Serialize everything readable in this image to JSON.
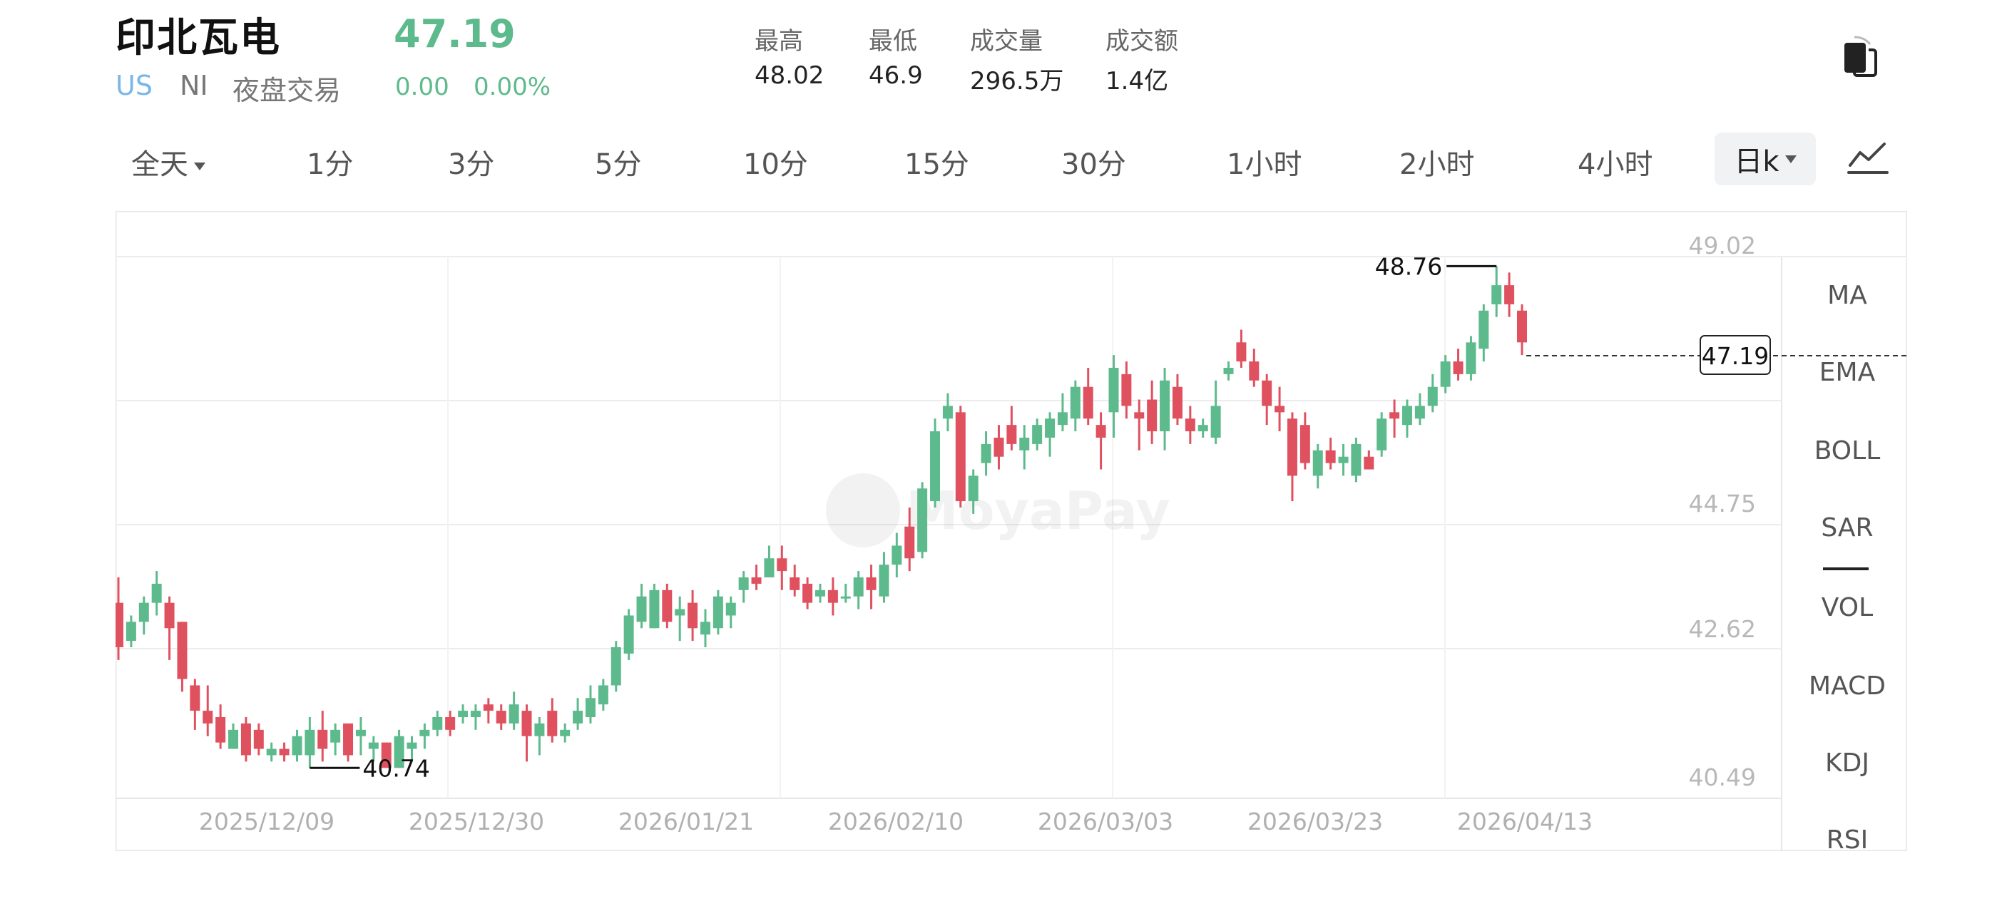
{
  "header": {
    "stock_name": "印北瓦电",
    "price": "47.19",
    "market": "US",
    "exchange": "NI",
    "session": "夜盘交易",
    "change": "0.00",
    "change_pct": "0.00%"
  },
  "stats": [
    {
      "label": "最高",
      "value": "48.02"
    },
    {
      "label": "最低",
      "value": "46.9"
    },
    {
      "label": "成交量",
      "value": "296.5万"
    },
    {
      "label": "成交额",
      "value": "1.4亿"
    }
  ],
  "tabs": {
    "all_day": "全天",
    "periods": [
      "1分",
      "3分",
      "5分",
      "10分",
      "15分",
      "30分",
      "1小时",
      "2小时",
      "4小时"
    ],
    "active": "日k"
  },
  "indicators": [
    "MA",
    "EMA",
    "BOLL",
    "SAR",
    "VOL",
    "MACD",
    "KDJ",
    "RSI"
  ],
  "icons": {
    "copy": "copy-icon",
    "trend": "line-chart-icon"
  },
  "colors": {
    "up": "#5dba8c",
    "down": "#e0515f",
    "market_blue": "#7ab7e8",
    "grid": "#ececec"
  },
  "watermark": "MoyaPay",
  "chart_data": {
    "type": "candlestick",
    "ylim": [
      40.49,
      49.02
    ],
    "y_ticks": [
      "49.02",
      "44.75",
      "42.62",
      "40.49"
    ],
    "x_ticks": [
      "2025/12/09",
      "2025/12/30",
      "2026/01/21",
      "2026/02/10",
      "2026/03/03",
      "2026/03/23",
      "2026/04/13"
    ],
    "max_label": "48.76",
    "min_label": "40.74",
    "last_price": "47.19",
    "candles": [
      [
        43.3,
        42.6,
        43.7,
        42.4
      ],
      [
        42.7,
        43.0,
        43.1,
        42.6
      ],
      [
        43.0,
        43.3,
        43.4,
        42.8
      ],
      [
        43.3,
        43.6,
        43.8,
        43.1
      ],
      [
        43.3,
        42.9,
        43.4,
        42.4
      ],
      [
        43.0,
        42.1,
        43.0,
        41.9
      ],
      [
        42.0,
        41.6,
        42.1,
        41.3
      ],
      [
        41.6,
        41.4,
        42.0,
        41.2
      ],
      [
        41.5,
        41.1,
        41.7,
        41.0
      ],
      [
        41.0,
        41.3,
        41.4,
        41.0
      ],
      [
        41.4,
        40.9,
        41.5,
        40.8
      ],
      [
        41.3,
        41.0,
        41.4,
        40.9
      ],
      [
        40.9,
        41.0,
        41.1,
        40.8
      ],
      [
        41.0,
        40.9,
        41.1,
        40.8
      ],
      [
        40.9,
        41.2,
        41.3,
        40.8
      ],
      [
        40.9,
        41.3,
        41.5,
        40.7
      ],
      [
        41.3,
        41.0,
        41.6,
        40.8
      ],
      [
        41.1,
        41.3,
        41.4,
        40.9
      ],
      [
        41.4,
        40.9,
        41.4,
        40.8
      ],
      [
        41.2,
        41.3,
        41.5,
        40.9
      ],
      [
        41.0,
        41.1,
        41.2,
        40.8
      ],
      [
        41.1,
        40.7,
        41.1,
        40.7
      ],
      [
        40.7,
        41.2,
        41.3,
        40.7
      ],
      [
        41.0,
        41.1,
        41.2,
        40.8
      ],
      [
        41.2,
        41.3,
        41.4,
        41.0
      ],
      [
        41.3,
        41.5,
        41.6,
        41.2
      ],
      [
        41.5,
        41.3,
        41.6,
        41.2
      ],
      [
        41.5,
        41.6,
        41.7,
        41.4
      ],
      [
        41.5,
        41.6,
        41.7,
        41.3
      ],
      [
        41.7,
        41.6,
        41.8,
        41.4
      ],
      [
        41.6,
        41.4,
        41.7,
        41.3
      ],
      [
        41.4,
        41.7,
        41.9,
        41.3
      ],
      [
        41.6,
        41.2,
        41.7,
        40.8
      ],
      [
        41.2,
        41.4,
        41.5,
        40.9
      ],
      [
        41.6,
        41.2,
        41.8,
        41.1
      ],
      [
        41.2,
        41.3,
        41.4,
        41.1
      ],
      [
        41.4,
        41.6,
        41.8,
        41.3
      ],
      [
        41.5,
        41.8,
        42.0,
        41.4
      ],
      [
        41.7,
        42.0,
        42.1,
        41.6
      ],
      [
        42.0,
        42.6,
        42.7,
        41.9
      ],
      [
        42.5,
        43.1,
        43.2,
        42.4
      ],
      [
        43.0,
        43.4,
        43.6,
        42.9
      ],
      [
        42.9,
        43.5,
        43.6,
        42.9
      ],
      [
        43.5,
        43.0,
        43.6,
        42.9
      ],
      [
        43.1,
        43.2,
        43.4,
        42.7
      ],
      [
        43.3,
        42.9,
        43.5,
        42.7
      ],
      [
        42.8,
        43.0,
        43.2,
        42.6
      ],
      [
        42.9,
        43.4,
        43.5,
        42.8
      ],
      [
        43.1,
        43.3,
        43.4,
        42.9
      ],
      [
        43.5,
        43.7,
        43.8,
        43.3
      ],
      [
        43.7,
        43.6,
        43.9,
        43.5
      ],
      [
        43.7,
        44.0,
        44.2,
        43.7
      ],
      [
        44.0,
        43.8,
        44.2,
        43.5
      ],
      [
        43.7,
        43.5,
        43.9,
        43.4
      ],
      [
        43.6,
        43.3,
        43.7,
        43.2
      ],
      [
        43.4,
        43.5,
        43.6,
        43.3
      ],
      [
        43.5,
        43.3,
        43.7,
        43.1
      ],
      [
        43.4,
        43.4,
        43.6,
        43.3
      ],
      [
        43.4,
        43.7,
        43.8,
        43.2
      ],
      [
        43.7,
        43.5,
        43.9,
        43.2
      ],
      [
        43.4,
        43.9,
        44.1,
        43.3
      ],
      [
        43.9,
        44.2,
        44.4,
        43.7
      ],
      [
        44.5,
        44.0,
        44.8,
        43.8
      ],
      [
        44.1,
        45.1,
        45.2,
        44.0
      ],
      [
        44.9,
        46.0,
        46.2,
        44.8
      ],
      [
        46.2,
        46.4,
        46.6,
        46.0
      ],
      [
        46.3,
        44.9,
        46.4,
        44.8
      ],
      [
        44.9,
        45.3,
        45.4,
        44.7
      ],
      [
        45.5,
        45.8,
        46.0,
        45.3
      ],
      [
        45.9,
        45.6,
        46.1,
        45.4
      ],
      [
        46.1,
        45.8,
        46.4,
        45.7
      ],
      [
        45.7,
        45.9,
        46.1,
        45.4
      ],
      [
        45.8,
        46.1,
        46.2,
        45.7
      ],
      [
        45.9,
        46.2,
        46.3,
        45.6
      ],
      [
        46.1,
        46.3,
        46.6,
        46.0
      ],
      [
        46.2,
        46.7,
        46.8,
        46.0
      ],
      [
        46.7,
        46.2,
        47.0,
        46.1
      ],
      [
        46.1,
        45.9,
        46.3,
        45.4
      ],
      [
        46.3,
        47.0,
        47.2,
        45.9
      ],
      [
        46.9,
        46.4,
        47.1,
        46.2
      ],
      [
        46.3,
        46.2,
        46.5,
        45.7
      ],
      [
        46.5,
        46.0,
        46.8,
        45.8
      ],
      [
        46.0,
        46.8,
        47.0,
        45.7
      ],
      [
        46.7,
        46.2,
        46.9,
        46.1
      ],
      [
        46.2,
        46.0,
        46.4,
        45.8
      ],
      [
        46.0,
        46.1,
        46.2,
        45.9
      ],
      [
        45.9,
        46.4,
        46.8,
        45.8
      ],
      [
        46.9,
        47.0,
        47.1,
        46.8
      ],
      [
        47.4,
        47.1,
        47.6,
        47.0
      ],
      [
        47.1,
        46.8,
        47.3,
        46.7
      ],
      [
        46.8,
        46.4,
        46.9,
        46.1
      ],
      [
        46.4,
        46.3,
        46.7,
        46.0
      ],
      [
        46.2,
        45.3,
        46.3,
        44.9
      ],
      [
        46.1,
        45.5,
        46.3,
        45.4
      ],
      [
        45.3,
        45.7,
        45.8,
        45.1
      ],
      [
        45.7,
        45.5,
        45.9,
        45.4
      ],
      [
        45.5,
        45.6,
        45.8,
        45.3
      ],
      [
        45.3,
        45.8,
        45.9,
        45.2
      ],
      [
        45.6,
        45.4,
        45.7,
        45.4
      ],
      [
        45.7,
        46.2,
        46.3,
        45.6
      ],
      [
        46.3,
        46.2,
        46.5,
        45.9
      ],
      [
        46.1,
        46.4,
        46.5,
        45.9
      ],
      [
        46.2,
        46.4,
        46.6,
        46.1
      ],
      [
        46.4,
        46.7,
        46.9,
        46.3
      ],
      [
        46.7,
        47.1,
        47.2,
        46.6
      ],
      [
        47.1,
        46.9,
        47.3,
        46.8
      ],
      [
        46.9,
        47.4,
        47.5,
        46.8
      ],
      [
        47.3,
        47.9,
        48.0,
        47.1
      ],
      [
        48.0,
        48.3,
        48.6,
        47.8
      ],
      [
        48.3,
        48.0,
        48.5,
        47.8
      ],
      [
        47.9,
        47.4,
        48.0,
        47.2
      ]
    ]
  }
}
